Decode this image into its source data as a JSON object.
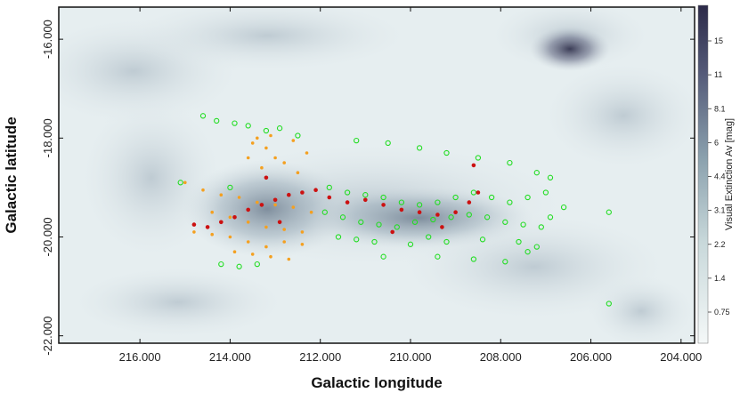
{
  "chart_data": {
    "type": "scatter",
    "xlabel": "Galactic longitude",
    "ylabel": "Galactic latitude",
    "xlim": [
      217.8,
      203.7
    ],
    "ylim": [
      -22.15,
      -15.35
    ],
    "x_reversed": true,
    "x_ticks": [
      216,
      214,
      212,
      210,
      208,
      206,
      204
    ],
    "x_tick_labels": [
      "216.000",
      "214.000",
      "212.000",
      "210.000",
      "208.000",
      "206.000",
      "204.000"
    ],
    "y_ticks": [
      -16,
      -18,
      -20,
      -22
    ],
    "y_tick_labels": [
      "-16.000",
      "-18.000",
      "-20.000",
      "-22.000"
    ],
    "background": "extinction map (grayscale, blue-gray colormap)",
    "colorbar": {
      "label": "Visual Extinction Av [mag]",
      "ticks": [
        "15",
        "11",
        "8.1",
        "6",
        "4.4",
        "3.1",
        "2.2",
        "1.4",
        "0.75"
      ],
      "scale": "log",
      "color_low": "#f4f8f8",
      "color_high": "#2c2a48"
    },
    "series": [
      {
        "marker": "open-circle",
        "color": "#22dd22",
        "points": [
          [
            214.6,
            -17.55
          ],
          [
            214.3,
            -17.65
          ],
          [
            213.9,
            -17.7
          ],
          [
            213.6,
            -17.75
          ],
          [
            213.2,
            -17.85
          ],
          [
            212.9,
            -17.8
          ],
          [
            212.5,
            -17.95
          ],
          [
            211.2,
            -18.05
          ],
          [
            210.5,
            -18.1
          ],
          [
            209.8,
            -18.2
          ],
          [
            209.2,
            -18.3
          ],
          [
            208.5,
            -18.4
          ],
          [
            207.8,
            -18.5
          ],
          [
            207.2,
            -18.7
          ],
          [
            206.9,
            -18.8
          ],
          [
            215.1,
            -18.9
          ],
          [
            214.0,
            -19.0
          ],
          [
            211.8,
            -19.0
          ],
          [
            211.4,
            -19.1
          ],
          [
            211.0,
            -19.15
          ],
          [
            210.6,
            -19.2
          ],
          [
            210.2,
            -19.3
          ],
          [
            209.8,
            -19.35
          ],
          [
            209.4,
            -19.3
          ],
          [
            209.0,
            -19.2
          ],
          [
            208.6,
            -19.1
          ],
          [
            208.2,
            -19.2
          ],
          [
            207.8,
            -19.3
          ],
          [
            207.4,
            -19.2
          ],
          [
            207.0,
            -19.1
          ],
          [
            211.9,
            -19.5
          ],
          [
            211.5,
            -19.6
          ],
          [
            211.1,
            -19.7
          ],
          [
            210.7,
            -19.75
          ],
          [
            210.3,
            -19.8
          ],
          [
            209.9,
            -19.7
          ],
          [
            209.5,
            -19.65
          ],
          [
            209.1,
            -19.6
          ],
          [
            208.7,
            -19.55
          ],
          [
            208.3,
            -19.6
          ],
          [
            207.9,
            -19.7
          ],
          [
            207.5,
            -19.75
          ],
          [
            207.1,
            -19.8
          ],
          [
            206.9,
            -19.6
          ],
          [
            211.6,
            -20.0
          ],
          [
            211.2,
            -20.05
          ],
          [
            210.8,
            -20.1
          ],
          [
            210.0,
            -20.15
          ],
          [
            209.6,
            -20.0
          ],
          [
            209.2,
            -20.1
          ],
          [
            208.4,
            -20.05
          ],
          [
            207.6,
            -20.1
          ],
          [
            207.2,
            -20.2
          ],
          [
            214.2,
            -20.55
          ],
          [
            213.8,
            -20.6
          ],
          [
            213.4,
            -20.55
          ],
          [
            210.6,
            -20.4
          ],
          [
            209.4,
            -20.4
          ],
          [
            208.6,
            -20.45
          ],
          [
            207.9,
            -20.5
          ],
          [
            207.4,
            -20.3
          ],
          [
            206.6,
            -19.4
          ],
          [
            205.6,
            -19.5
          ],
          [
            205.6,
            -21.35
          ]
        ]
      },
      {
        "marker": "filled-circle",
        "color": "#f4a020",
        "points": [
          [
            215.0,
            -18.9
          ],
          [
            214.6,
            -19.05
          ],
          [
            214.2,
            -19.15
          ],
          [
            213.8,
            -19.2
          ],
          [
            213.4,
            -19.3
          ],
          [
            213.0,
            -19.35
          ],
          [
            212.6,
            -19.4
          ],
          [
            212.2,
            -19.5
          ],
          [
            213.5,
            -18.1
          ],
          [
            213.2,
            -18.2
          ],
          [
            213.0,
            -18.4
          ],
          [
            212.8,
            -18.5
          ],
          [
            212.5,
            -18.7
          ],
          [
            213.6,
            -18.4
          ],
          [
            213.3,
            -18.6
          ],
          [
            214.4,
            -19.5
          ],
          [
            214.0,
            -19.6
          ],
          [
            213.6,
            -19.7
          ],
          [
            213.2,
            -19.8
          ],
          [
            212.8,
            -19.85
          ],
          [
            212.4,
            -19.9
          ],
          [
            214.8,
            -19.9
          ],
          [
            214.4,
            -19.95
          ],
          [
            214.0,
            -20.0
          ],
          [
            213.6,
            -20.1
          ],
          [
            213.2,
            -20.2
          ],
          [
            212.8,
            -20.1
          ],
          [
            212.4,
            -20.15
          ],
          [
            213.9,
            -20.3
          ],
          [
            213.5,
            -20.35
          ],
          [
            213.1,
            -20.4
          ],
          [
            212.7,
            -20.45
          ],
          [
            213.4,
            -18.0
          ],
          [
            212.3,
            -18.3
          ],
          [
            213.1,
            -17.95
          ],
          [
            212.6,
            -18.05
          ]
        ]
      },
      {
        "marker": "filled-circle",
        "color": "#cc1111",
        "points": [
          [
            214.8,
            -19.75
          ],
          [
            214.5,
            -19.8
          ],
          [
            214.2,
            -19.7
          ],
          [
            213.9,
            -19.6
          ],
          [
            213.6,
            -19.45
          ],
          [
            213.3,
            -19.35
          ],
          [
            213.0,
            -19.25
          ],
          [
            212.7,
            -19.15
          ],
          [
            212.4,
            -19.1
          ],
          [
            212.1,
            -19.05
          ],
          [
            211.8,
            -19.2
          ],
          [
            211.4,
            -19.3
          ],
          [
            211.0,
            -19.25
          ],
          [
            210.6,
            -19.35
          ],
          [
            210.2,
            -19.45
          ],
          [
            209.8,
            -19.5
          ],
          [
            209.4,
            -19.55
          ],
          [
            209.0,
            -19.5
          ],
          [
            208.7,
            -19.3
          ],
          [
            208.5,
            -19.1
          ],
          [
            208.6,
            -18.55
          ],
          [
            209.3,
            -19.8
          ],
          [
            210.4,
            -19.9
          ],
          [
            213.2,
            -18.8
          ],
          [
            212.9,
            -19.7
          ]
        ]
      }
    ]
  }
}
